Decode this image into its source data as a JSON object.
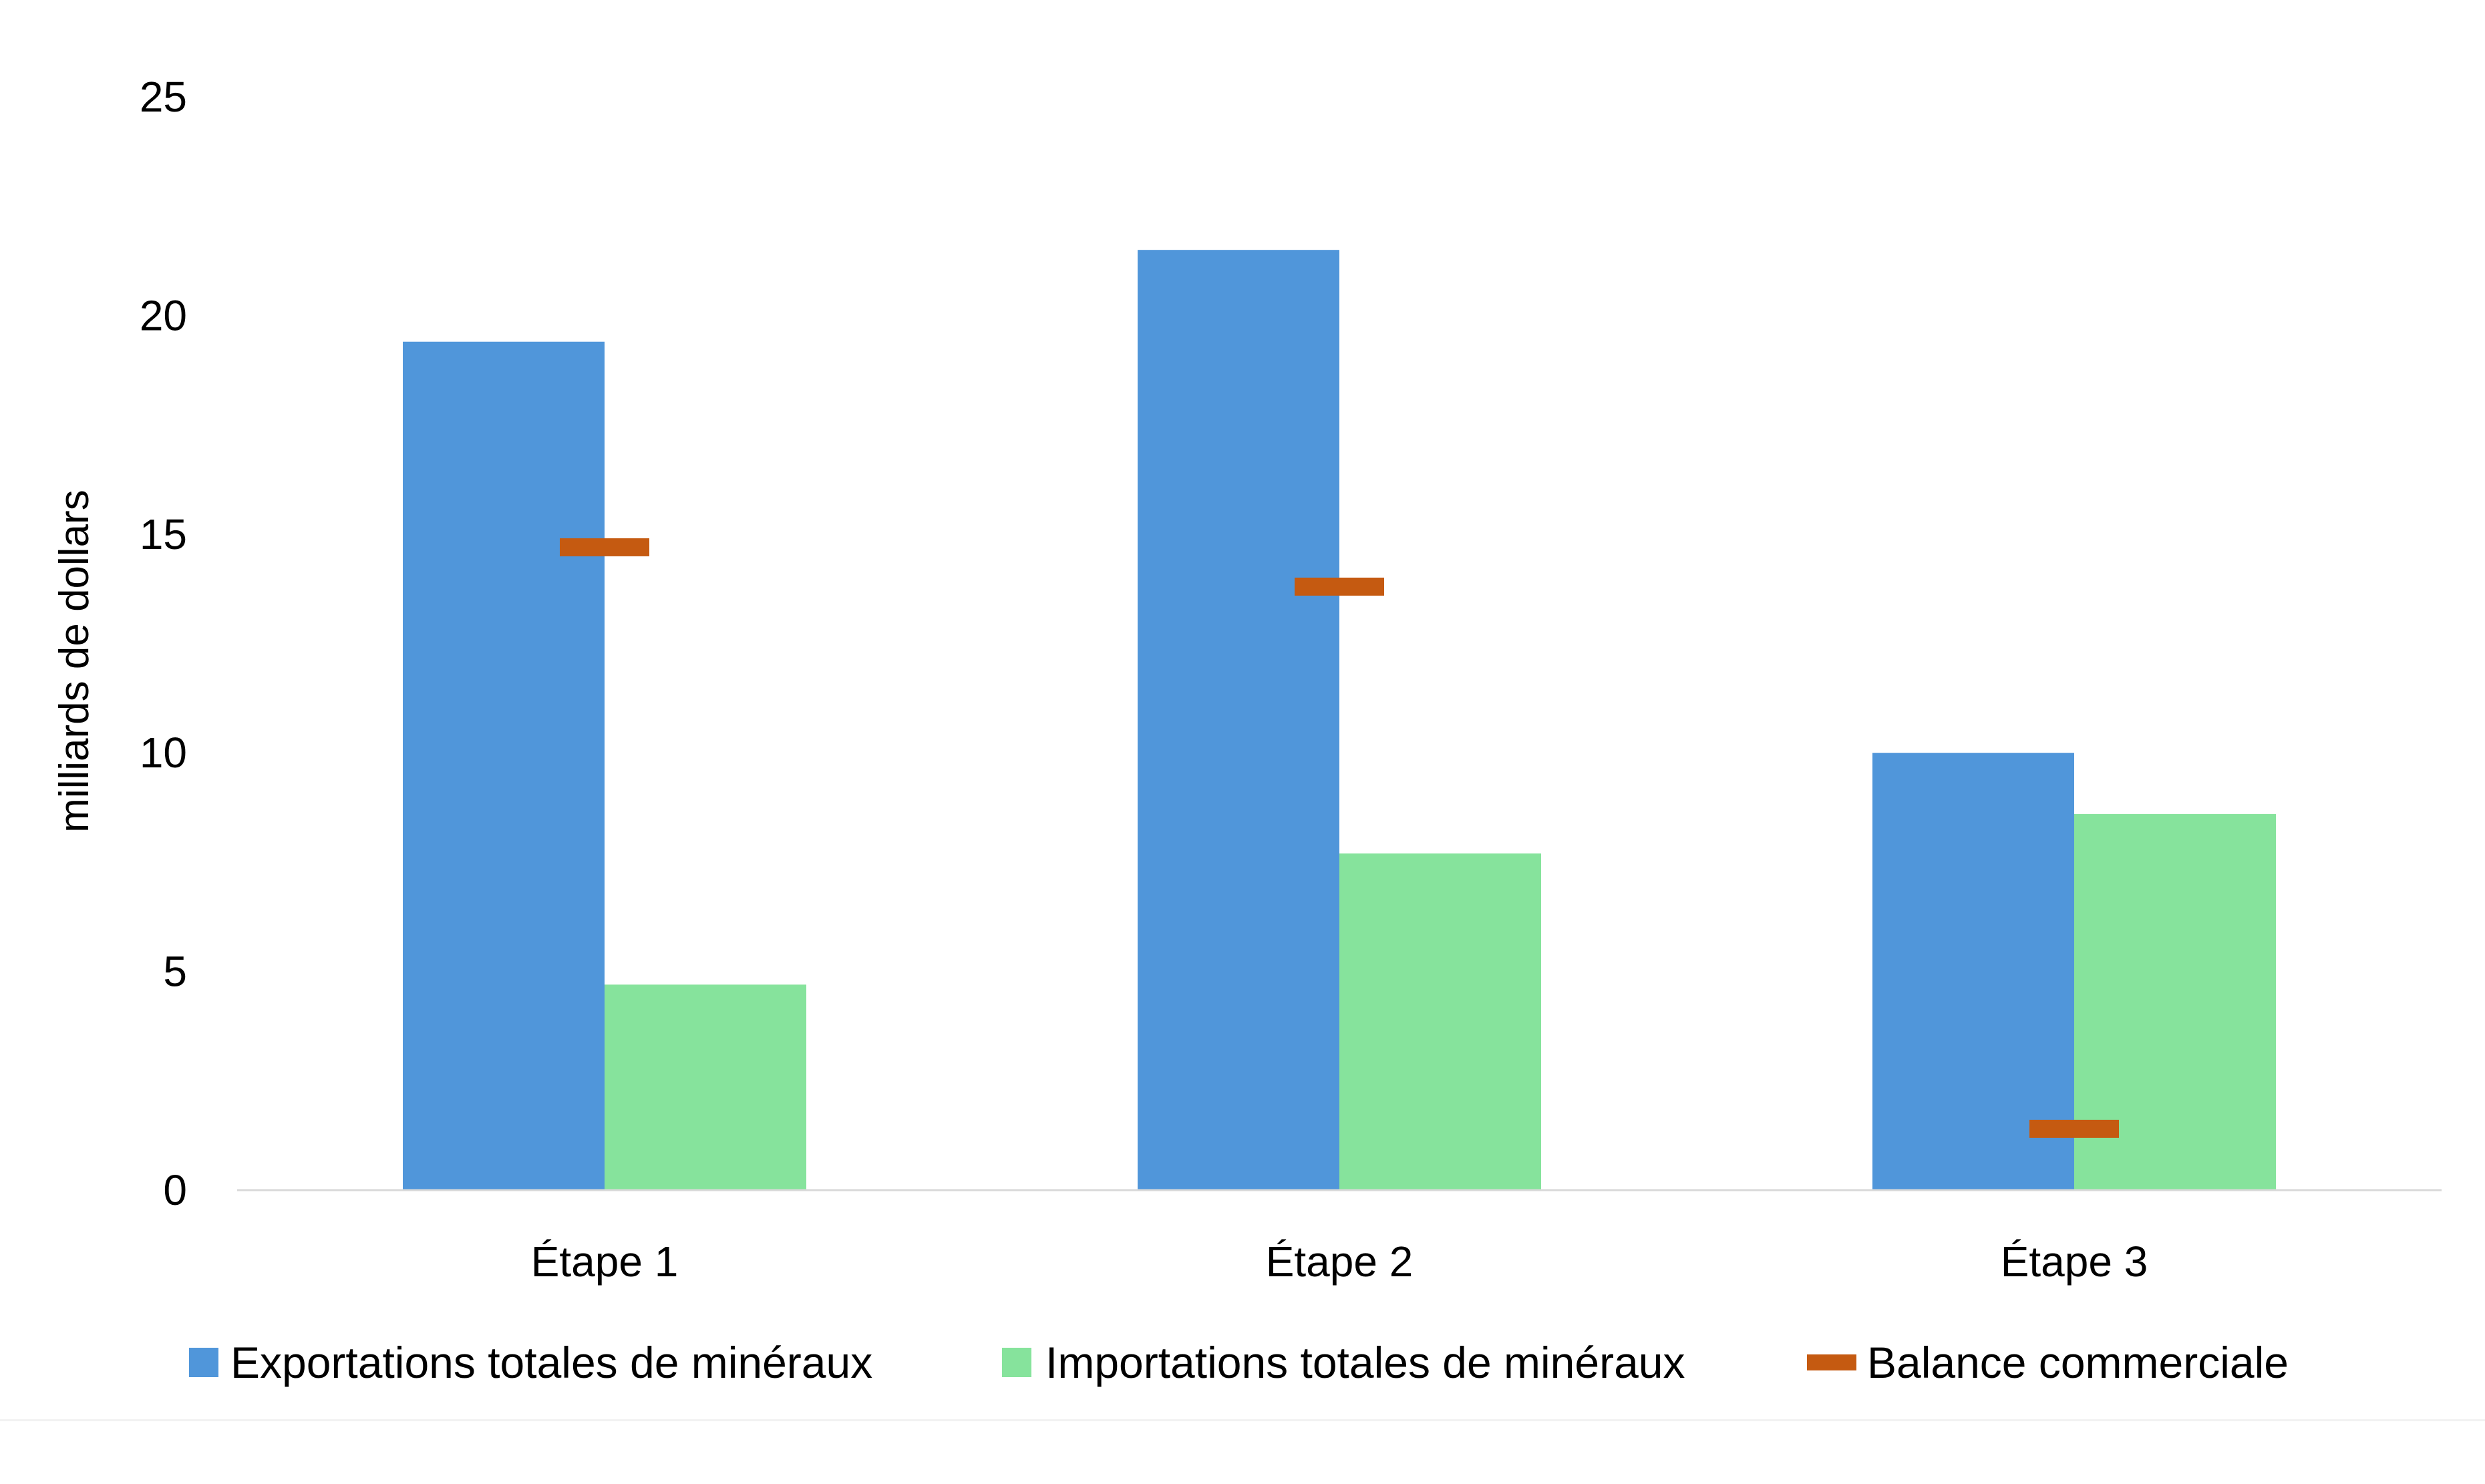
{
  "chart_data": {
    "type": "bar",
    "categories": [
      "Étape 1",
      "Étape 2",
      "Étape 3"
    ],
    "series": [
      {
        "name": "Exportations totales de minéraux",
        "kind": "bar",
        "color": "#5096da",
        "values": [
          19.4,
          21.5,
          10.0
        ]
      },
      {
        "name": "Importations totales de minéraux",
        "kind": "bar",
        "color": "#86e39c",
        "values": [
          4.7,
          7.7,
          8.6
        ]
      },
      {
        "name": "Balance commerciale",
        "kind": "marker",
        "color": "#c55a11",
        "values": [
          14.7,
          13.8,
          1.4
        ]
      }
    ],
    "title": "",
    "xlabel": "",
    "ylabel": "milliards de dollars",
    "ylim": [
      0,
      25
    ],
    "yticks": [
      "0",
      "5",
      "10",
      "15",
      "20",
      "25"
    ],
    "grid": false,
    "legend_position": "bottom"
  }
}
